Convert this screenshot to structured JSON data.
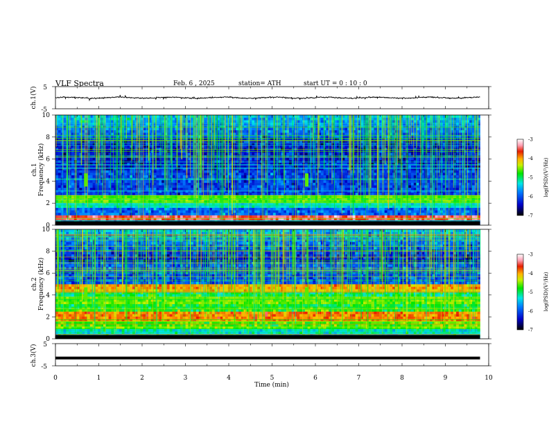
{
  "header": {
    "title": "VLF  Spectra",
    "date": "Feb. 6  , 2025",
    "station": "station= ATH",
    "start": "start  UT  =    0 : 10 : 0"
  },
  "chart_data": [
    {
      "type": "line",
      "panel": "ch1-waveform",
      "ylabel": "ch.1(V)",
      "ylim": [
        -5,
        5
      ],
      "yticks": [
        "5",
        "-5"
      ],
      "xlim": [
        0,
        10
      ],
      "trace_extent": [
        0,
        9.8
      ],
      "baseline": 0,
      "peak_amplitude": 1.5
    },
    {
      "type": "heatmap",
      "panel": "ch1-spectrogram",
      "ylabel": "ch.1\nFrequency  (kHz)",
      "ylim": [
        0,
        10
      ],
      "yticks": [
        "0",
        "2",
        "4",
        "6",
        "8",
        "10"
      ],
      "xlim": [
        0,
        10
      ],
      "data_extent": [
        0,
        9.8
      ],
      "colorbar": {
        "label": "log(PSD)(V²/Hz)",
        "range": [
          -7,
          -3
        ],
        "ticks": [
          "-3",
          "-4",
          "-5",
          "-6",
          "-7"
        ]
      },
      "bands_khz": [
        {
          "f_low": 2.1,
          "f_high": 2.5,
          "level": -4.6
        },
        {
          "f_low": 0.6,
          "f_high": 0.9,
          "level": -3.5
        },
        {
          "f_low": 1.6,
          "f_high": 1.9,
          "level": -5.3
        }
      ],
      "events_min": [
        0.7,
        5.8
      ]
    },
    {
      "type": "heatmap",
      "panel": "ch2-spectrogram",
      "ylabel": "ch.2\nFrequency  (kHz)",
      "ylim": [
        0,
        10
      ],
      "yticks": [
        "0",
        "2",
        "4",
        "6",
        "8",
        "10"
      ],
      "xlim": [
        0,
        10
      ],
      "data_extent": [
        0,
        9.8
      ],
      "colorbar": {
        "label": "log(PSD)(V²/Hz)",
        "range": [
          -7,
          -3
        ],
        "ticks": [
          "-3",
          "-4",
          "-5",
          "-6",
          "-7"
        ]
      },
      "bands_khz": [
        {
          "f_low": 1.8,
          "f_high": 2.3,
          "level": -3.9
        },
        {
          "f_low": 4.5,
          "f_high": 4.8,
          "level": -4.0
        },
        {
          "f_low": 3.4,
          "f_high": 3.7,
          "level": -4.6
        }
      ],
      "events_min": [
        0.7,
        5.8
      ]
    },
    {
      "type": "line",
      "panel": "ch3-waveform",
      "ylabel": "ch.3(V)",
      "ylim": [
        -5,
        5
      ],
      "yticks": [
        "5",
        "-5"
      ],
      "xlim": [
        0,
        10
      ],
      "trace_extent": [
        0,
        9.8
      ],
      "baseline": -1.5,
      "xlabel": "Time  (min)",
      "xticks": [
        "0",
        "1",
        "2",
        "3",
        "4",
        "5",
        "6",
        "7",
        "8",
        "9",
        "10"
      ]
    }
  ]
}
